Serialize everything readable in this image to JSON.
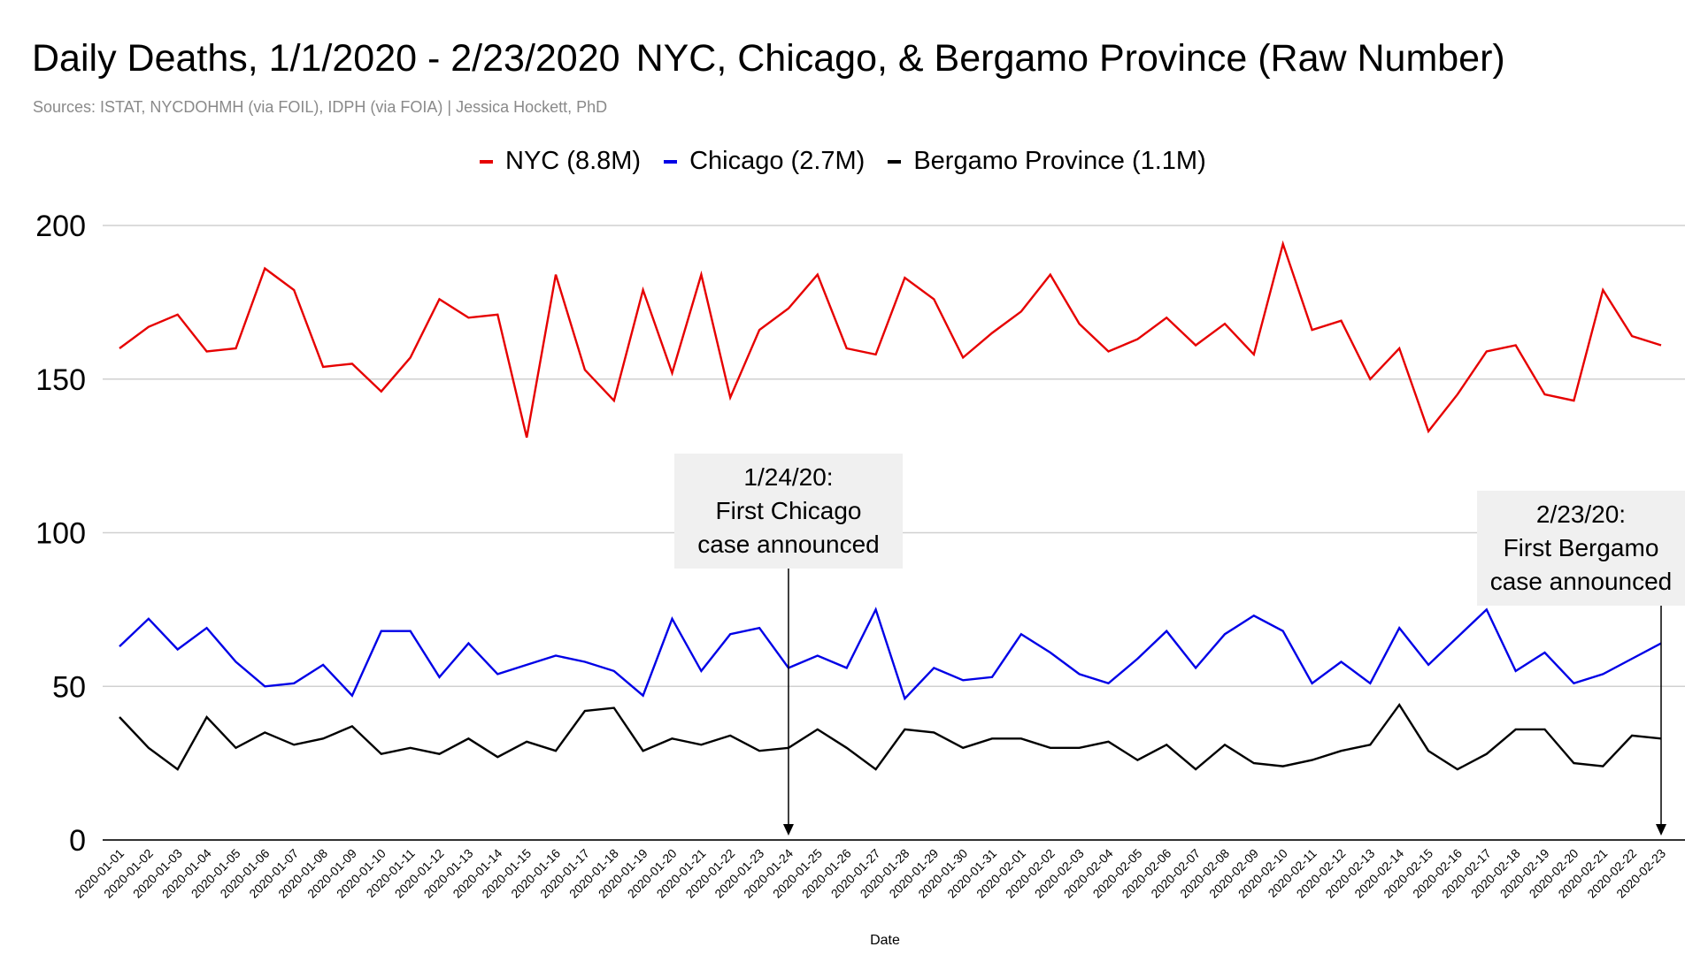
{
  "title": "Daily Deaths, 1/1/2020 - 2/23/2020",
  "subtitle": "NYC, Chicago, & Bergamo Province (Raw Number)",
  "source_text": "Sources: ISTAT, NYCDOHMH (via FOIL), IDPH (via FOIA) | Jessica Hockett, PhD",
  "chart_data": {
    "type": "line",
    "title": "Daily Deaths, 1/1/2020 - 2/23/2020 NYC, Chicago, & Bergamo Province (Raw Number)",
    "xlabel": "Date",
    "ylabel": "",
    "ylim": [
      0,
      200
    ],
    "yticks": [
      "0",
      "50",
      "100",
      "150",
      "200"
    ],
    "grid": true,
    "legend_position": "top",
    "x": [
      "2020-01-01",
      "2020-01-02",
      "2020-01-03",
      "2020-01-04",
      "2020-01-05",
      "2020-01-06",
      "2020-01-07",
      "2020-01-08",
      "2020-01-09",
      "2020-01-10",
      "2020-01-11",
      "2020-01-12",
      "2020-01-13",
      "2020-01-14",
      "2020-01-15",
      "2020-01-16",
      "2020-01-17",
      "2020-01-18",
      "2020-01-19",
      "2020-01-20",
      "2020-01-21",
      "2020-01-22",
      "2020-01-23",
      "2020-01-24",
      "2020-01-25",
      "2020-01-26",
      "2020-01-27",
      "2020-01-28",
      "2020-01-29",
      "2020-01-30",
      "2020-01-31",
      "2020-02-01",
      "2020-02-02",
      "2020-02-03",
      "2020-02-04",
      "2020-02-05",
      "2020-02-06",
      "2020-02-07",
      "2020-02-08",
      "2020-02-09",
      "2020-02-10",
      "2020-02-11",
      "2020-02-12",
      "2020-02-13",
      "2020-02-14",
      "2020-02-15",
      "2020-02-16",
      "2020-02-17",
      "2020-02-18",
      "2020-02-19",
      "2020-02-20",
      "2020-02-21",
      "2020-02-22",
      "2020-02-23"
    ],
    "series": [
      {
        "name": "NYC (8.8M)",
        "color": "#e60000",
        "values": [
          160,
          167,
          171,
          159,
          160,
          186,
          179,
          154,
          155,
          146,
          157,
          176,
          170,
          171,
          131,
          184,
          153,
          143,
          179,
          152,
          184,
          144,
          166,
          173,
          184,
          160,
          158,
          183,
          176,
          157,
          165,
          172,
          184,
          168,
          159,
          163,
          170,
          161,
          168,
          158,
          194,
          166,
          169,
          150,
          160,
          133,
          145,
          159,
          161,
          145,
          143,
          179,
          164,
          161
        ]
      },
      {
        "name": "Chicago (2.7M)",
        "color": "#0000e6",
        "values": [
          63,
          72,
          62,
          69,
          58,
          50,
          51,
          57,
          47,
          68,
          68,
          53,
          64,
          54,
          57,
          60,
          58,
          55,
          47,
          72,
          55,
          67,
          69,
          56,
          60,
          56,
          75,
          46,
          56,
          52,
          53,
          67,
          61,
          54,
          51,
          59,
          68,
          56,
          67,
          73,
          68,
          51,
          58,
          51,
          69,
          57,
          66,
          75,
          55,
          61,
          51,
          54,
          59,
          64
        ]
      },
      {
        "name": "Bergamo Province (1.1M)",
        "color": "#000000",
        "values": [
          40,
          30,
          23,
          40,
          30,
          35,
          31,
          33,
          37,
          28,
          30,
          28,
          33,
          27,
          32,
          29,
          42,
          43,
          29,
          33,
          31,
          34,
          29,
          30,
          36,
          30,
          23,
          36,
          35,
          30,
          33,
          33,
          30,
          30,
          32,
          26,
          31,
          23,
          31,
          25,
          24,
          26,
          29,
          31,
          44,
          29,
          23,
          28,
          36,
          36,
          25,
          24,
          34,
          33
        ]
      }
    ],
    "annotations": [
      {
        "x": "2020-01-24",
        "text": [
          "1/24/20:",
          "First Chicago",
          "case announced"
        ]
      },
      {
        "x": "2020-02-23",
        "text": [
          "2/23/20:",
          "First Bergamo",
          "case announced"
        ]
      }
    ]
  }
}
